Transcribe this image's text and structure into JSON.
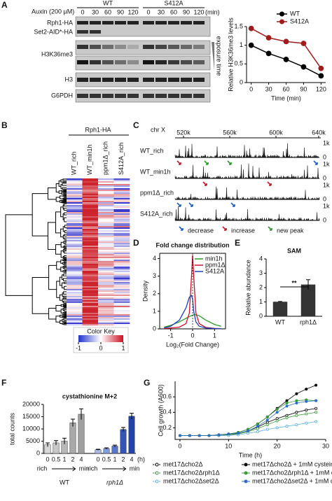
{
  "panel_labels": [
    "A",
    "B",
    "C",
    "D",
    "E",
    "F",
    "G"
  ],
  "blot": {
    "treatment": "Auxin (200 µM)",
    "groups": [
      "WT",
      "S412A"
    ],
    "timepoints": [
      "0",
      "30",
      "60",
      "90",
      "120"
    ],
    "unit": "(min)",
    "rows": [
      "Rph1-HA",
      "Set2-AID*-HA",
      "H3K36me3",
      "H3",
      "G6PDH"
    ],
    "exposure": "exposure time"
  },
  "heatmap": {
    "title": "Rph1-HA",
    "columns": [
      "WT_rich",
      "WT_min1h",
      "ppm1Δ_rich",
      "S412A_rich"
    ],
    "color_key": {
      "title": "Color Key",
      "ticks": [
        -1,
        0,
        1
      ]
    }
  },
  "tracks": {
    "chrom": "chr X",
    "positions": [
      "520k",
      "560k",
      "600k",
      "640k"
    ],
    "scale_labels": [
      "1k",
      "0"
    ],
    "rows": [
      "WT_rich",
      "WT_min1h",
      "ppm1Δ_rich",
      "S412A_rich"
    ],
    "legend": [
      "decrease",
      "increase",
      "new peak"
    ],
    "legend_colors": [
      "#1f5fbf",
      "#c0182a",
      "#2a9a2a"
    ]
  },
  "chart_data": [
    {
      "type": "line",
      "ylabel": "Relative H3K36me3 levels",
      "xlabel": "Time (min)",
      "xlim": [
        -8,
        128
      ],
      "xticks": [
        0,
        30,
        60,
        90,
        120
      ],
      "ylim": [
        0,
        1.5
      ],
      "yticks": [
        0,
        0.5,
        1,
        1.5
      ],
      "x": [
        0,
        30,
        60,
        90,
        120
      ],
      "legend": "upper right",
      "series": [
        {
          "name": "WT",
          "color": "#000000",
          "values": [
            1,
            0.78,
            0.62,
            0.42,
            0.18
          ]
        },
        {
          "name": "S412A",
          "color": "#a01c1c",
          "values": [
            1.45,
            1.2,
            1.1,
            1.05,
            0.38
          ]
        }
      ]
    },
    {
      "type": "line",
      "title": "Fold change distribution",
      "ylabel": "Density",
      "xlabel": "Log₂(Fold Change)",
      "xlim": [
        -1.5,
        1.5
      ],
      "xticks": [
        -1,
        0,
        1
      ],
      "ylim": [
        0,
        4.3
      ],
      "yticks": [
        0,
        1,
        2,
        3,
        4
      ],
      "x": [
        -1.3,
        -1,
        -0.6,
        -0.3,
        -0.15,
        -0.05,
        0,
        0.05,
        0.15,
        0.3,
        0.6,
        1,
        1.3
      ],
      "legend": "upper right",
      "series": [
        {
          "name": "min1h",
          "color": "#2a9a2a",
          "values": [
            0.1,
            0.2,
            0.4,
            0.6,
            0.7,
            0.75,
            0.78,
            0.8,
            0.8,
            0.75,
            0.5,
            0.25,
            0.15
          ]
        },
        {
          "name": "ppm1Δ",
          "color": "#d0102a",
          "values": [
            0.02,
            0.05,
            0.1,
            0.3,
            0.9,
            3,
            4.2,
            3,
            0.9,
            0.3,
            0.08,
            0.03,
            0.01
          ]
        },
        {
          "name": "S412A",
          "color": "#1f3fbf",
          "values": [
            0.05,
            0.15,
            0.5,
            1.2,
            1.8,
            1.9,
            1.7,
            1,
            0.4,
            0.15,
            0.05,
            0.02,
            0.01
          ]
        }
      ]
    },
    {
      "type": "bar",
      "title": "SAM",
      "ylabel": "Relative abundance",
      "categories": [
        "WT",
        "rph1Δ"
      ],
      "values": [
        1,
        2.2
      ],
      "errors": [
        0.03,
        0.35
      ],
      "color": "#333333",
      "ylim": [
        0,
        4
      ],
      "yticks": [
        0,
        1,
        2,
        3,
        4
      ],
      "annotation": "**"
    },
    {
      "type": "bar",
      "title": "cystathionine M+2",
      "ylabel": "total counts",
      "categories": [
        "0",
        "0.5",
        "1",
        "2",
        "4",
        "0",
        "0.5",
        "1",
        "2",
        "4"
      ],
      "values": [
        3500,
        4300,
        5000,
        12500,
        16000,
        1500,
        2000,
        3000,
        9800,
        15200
      ],
      "errors": [
        800,
        900,
        1200,
        1500,
        2200,
        200,
        300,
        400,
        800,
        1200
      ],
      "colors": [
        "#d8d8d8",
        "#c8c8c8",
        "#b8b8b8",
        "#a8a8a8",
        "#a0a0a0",
        "#a9bde8",
        "#7f9ddf",
        "#5577cc",
        "#3355b8",
        "#2244a8"
      ],
      "ylim": [
        0,
        20000
      ],
      "yticks": [
        0,
        5000,
        10000,
        15000,
        20000
      ],
      "group_labels": [
        "WT",
        "rph1Δ"
      ],
      "axis_start": "rich",
      "axis_end": "min",
      "unit": "(h)"
    },
    {
      "type": "line",
      "ylabel": "Cell growth (A600)",
      "xlabel": "Time (h)",
      "xlim": [
        -1,
        30
      ],
      "xticks": [
        0,
        10,
        20,
        30
      ],
      "ylim": [
        0.05,
        0.8
      ],
      "yticks": [
        0.2,
        0.4,
        0.6
      ],
      "x": [
        0,
        2,
        4,
        6,
        8,
        10,
        12,
        14,
        16,
        18,
        20,
        22,
        24,
        26,
        28
      ],
      "legend": "below",
      "series": [
        {
          "name": "met17Δcho2Δ",
          "color": "#000000",
          "filled": false,
          "values": [
            0.1,
            0.1,
            0.1,
            0.1,
            0.1,
            0.11,
            0.13,
            0.16,
            0.21,
            0.27,
            0.32,
            0.36,
            0.4,
            0.43,
            0.45
          ]
        },
        {
          "name": "met17Δcho2Δrph1Δ",
          "color": "#3a9a3a",
          "filled": false,
          "values": [
            0.1,
            0.1,
            0.1,
            0.1,
            0.1,
            0.11,
            0.12,
            0.15,
            0.19,
            0.24,
            0.29,
            0.33,
            0.36,
            0.38,
            0.4
          ]
        },
        {
          "name": "met17Δcho2Δset2Δ",
          "color": "#5aaee0",
          "filled": false,
          "values": [
            0.1,
            0.1,
            0.1,
            0.1,
            0.1,
            0.1,
            0.11,
            0.13,
            0.15,
            0.18,
            0.2,
            0.22,
            0.24,
            0.26,
            0.28
          ]
        },
        {
          "name": "met17Δcho2Δ + 1mM cysteine",
          "color": "#000000",
          "filled": true,
          "values": [
            0.1,
            0.1,
            0.1,
            0.1,
            0.11,
            0.12,
            0.14,
            0.18,
            0.25,
            0.34,
            0.45,
            0.55,
            0.64,
            0.7,
            0.75
          ]
        },
        {
          "name": "met17Δcho2Δrph1Δ + 1mM cysteine",
          "color": "#3a9a3a",
          "filled": true,
          "values": [
            0.1,
            0.1,
            0.1,
            0.1,
            0.11,
            0.12,
            0.14,
            0.18,
            0.25,
            0.34,
            0.44,
            0.52,
            0.55,
            0.56,
            0.55
          ]
        },
        {
          "name": "met17Δcho2Δset2Δ + 1mM cysteine",
          "color": "#2a6ec8",
          "filled": true,
          "values": [
            0.1,
            0.1,
            0.1,
            0.1,
            0.11,
            0.12,
            0.13,
            0.16,
            0.22,
            0.3,
            0.4,
            0.48,
            0.52,
            0.54,
            0.55
          ]
        }
      ]
    }
  ]
}
